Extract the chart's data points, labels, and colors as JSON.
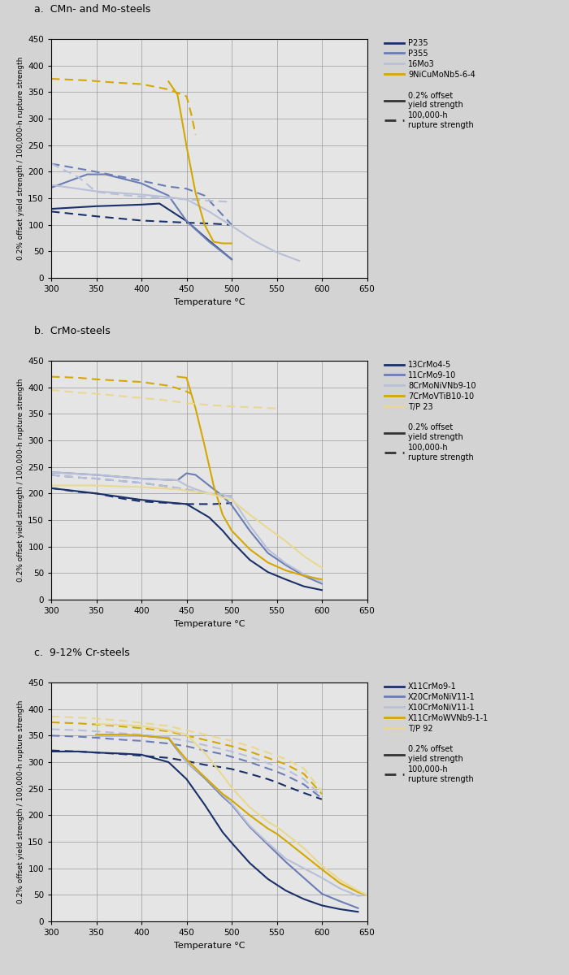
{
  "bg_color": "#d3d3d3",
  "plot_bg": "#e5e5e5",
  "title_a": "a.  CMn- and Mo-steels",
  "title_b": "b.  CrMo-steels",
  "title_c": "c.  9-12% Cr-steels",
  "ylabel": "0.2% offset yield strength / 100,000-h rupture strength",
  "xlabel": "Temperature °C",
  "xlim": [
    300,
    650
  ],
  "ylim": [
    0,
    450
  ],
  "xticks": [
    300,
    350,
    400,
    450,
    500,
    550,
    600,
    650
  ],
  "yticks": [
    0,
    50,
    100,
    150,
    200,
    250,
    300,
    350,
    400,
    450
  ],
  "panel_a": {
    "colors": {
      "P235": "#1a3068",
      "P355": "#6b7db5",
      "16Mo3": "#b8c0d8",
      "9NiCuMoNb5-6-4": "#d4a800"
    },
    "yield": {
      "P235": [
        [
          300,
          130
        ],
        [
          350,
          135
        ],
        [
          400,
          138
        ],
        [
          420,
          140
        ],
        [
          450,
          107
        ],
        [
          475,
          70
        ],
        [
          500,
          35
        ]
      ],
      "P355": [
        [
          300,
          170
        ],
        [
          340,
          195
        ],
        [
          360,
          195
        ],
        [
          400,
          178
        ],
        [
          430,
          155
        ],
        [
          450,
          107
        ],
        [
          475,
          68
        ],
        [
          500,
          35
        ]
      ],
      "16Mo3": [
        [
          300,
          175
        ],
        [
          350,
          163
        ],
        [
          400,
          157
        ],
        [
          430,
          152
        ],
        [
          450,
          148
        ],
        [
          475,
          125
        ],
        [
          500,
          98
        ],
        [
          525,
          70
        ],
        [
          550,
          48
        ],
        [
          575,
          32
        ]
      ],
      "9NiCuMoNb5-6-4": [
        [
          430,
          370
        ],
        [
          440,
          345
        ],
        [
          450,
          248
        ],
        [
          460,
          160
        ],
        [
          470,
          100
        ],
        [
          480,
          68
        ],
        [
          490,
          65
        ],
        [
          500,
          65
        ]
      ]
    },
    "rupture": {
      "P235": [
        [
          300,
          125
        ],
        [
          350,
          116
        ],
        [
          400,
          108
        ],
        [
          450,
          104
        ],
        [
          480,
          102
        ],
        [
          500,
          100
        ]
      ],
      "P355": [
        [
          300,
          215
        ],
        [
          340,
          203
        ],
        [
          370,
          193
        ],
        [
          400,
          183
        ],
        [
          430,
          172
        ],
        [
          450,
          168
        ],
        [
          470,
          155
        ],
        [
          500,
          100
        ]
      ],
      "16Mo3": [
        [
          300,
          215
        ],
        [
          330,
          190
        ],
        [
          350,
          162
        ],
        [
          380,
          156
        ],
        [
          400,
          153
        ],
        [
          430,
          150
        ],
        [
          450,
          148
        ],
        [
          470,
          146
        ],
        [
          500,
          143
        ]
      ],
      "9NiCuMoNb5-6-4": [
        [
          300,
          375
        ],
        [
          340,
          372
        ],
        [
          370,
          368
        ],
        [
          400,
          365
        ],
        [
          430,
          355
        ],
        [
          450,
          342
        ],
        [
          455,
          310
        ],
        [
          460,
          270
        ]
      ]
    }
  },
  "panel_b": {
    "colors": {
      "13CrMo4-5": "#1a3068",
      "11CrMo9-10": "#6b7db5",
      "8CrMoNiVNb9-10": "#b8c0d8",
      "7CrMoVTiB10-10": "#d4a800",
      "T/P 23": "#e8d890"
    },
    "yield": {
      "13CrMo4-5": [
        [
          300,
          210
        ],
        [
          350,
          200
        ],
        [
          400,
          188
        ],
        [
          430,
          183
        ],
        [
          450,
          180
        ],
        [
          475,
          155
        ],
        [
          490,
          130
        ],
        [
          500,
          110
        ],
        [
          520,
          75
        ],
        [
          540,
          52
        ],
        [
          560,
          38
        ],
        [
          580,
          25
        ],
        [
          600,
          18
        ]
      ],
      "11CrMo9-10": [
        [
          300,
          240
        ],
        [
          350,
          235
        ],
        [
          400,
          228
        ],
        [
          440,
          225
        ],
        [
          450,
          238
        ],
        [
          460,
          235
        ],
        [
          475,
          215
        ],
        [
          490,
          195
        ],
        [
          500,
          178
        ],
        [
          520,
          130
        ],
        [
          540,
          88
        ],
        [
          560,
          65
        ],
        [
          580,
          45
        ],
        [
          600,
          30
        ]
      ],
      "8CrMoNiVNb9-10": [
        [
          300,
          240
        ],
        [
          350,
          235
        ],
        [
          400,
          228
        ],
        [
          440,
          225
        ],
        [
          450,
          215
        ],
        [
          460,
          208
        ],
        [
          475,
          200
        ],
        [
          490,
          198
        ],
        [
          500,
          192
        ],
        [
          520,
          140
        ],
        [
          540,
          95
        ],
        [
          560,
          68
        ],
        [
          580,
          48
        ],
        [
          600,
          33
        ]
      ],
      "7CrMoVTiB10-10": [
        [
          440,
          420
        ],
        [
          450,
          418
        ],
        [
          460,
          360
        ],
        [
          470,
          290
        ],
        [
          480,
          215
        ],
        [
          490,
          160
        ],
        [
          500,
          130
        ],
        [
          520,
          95
        ],
        [
          540,
          70
        ],
        [
          560,
          55
        ],
        [
          580,
          45
        ],
        [
          600,
          38
        ]
      ],
      "T/P 23": [
        [
          300,
          215
        ],
        [
          350,
          215
        ],
        [
          400,
          212
        ],
        [
          440,
          208
        ],
        [
          450,
          205
        ],
        [
          475,
          200
        ],
        [
          500,
          188
        ],
        [
          520,
          160
        ],
        [
          540,
          135
        ],
        [
          560,
          110
        ],
        [
          580,
          82
        ],
        [
          600,
          60
        ]
      ]
    },
    "rupture": {
      "13CrMo4-5": [
        [
          300,
          210
        ],
        [
          330,
          203
        ],
        [
          350,
          200
        ],
        [
          380,
          190
        ],
        [
          400,
          185
        ],
        [
          430,
          182
        ],
        [
          450,
          180
        ],
        [
          480,
          180
        ],
        [
          500,
          182
        ]
      ],
      "11CrMo9-10": [
        [
          300,
          235
        ],
        [
          330,
          230
        ],
        [
          350,
          228
        ],
        [
          380,
          223
        ],
        [
          400,
          220
        ],
        [
          430,
          213
        ],
        [
          450,
          207
        ],
        [
          480,
          198
        ],
        [
          500,
          195
        ]
      ],
      "8CrMoNiVNb9-10": [
        [
          300,
          235
        ],
        [
          330,
          230
        ],
        [
          350,
          228
        ],
        [
          380,
          223
        ],
        [
          400,
          220
        ],
        [
          430,
          213
        ],
        [
          450,
          208
        ],
        [
          480,
          198
        ],
        [
          500,
          195
        ]
      ],
      "7CrMoVTiB10-10": [
        [
          300,
          420
        ],
        [
          330,
          418
        ],
        [
          350,
          415
        ],
        [
          380,
          412
        ],
        [
          400,
          410
        ],
        [
          430,
          403
        ],
        [
          440,
          398
        ],
        [
          450,
          392
        ],
        [
          455,
          388
        ]
      ],
      "T/P 23": [
        [
          300,
          395
        ],
        [
          330,
          390
        ],
        [
          350,
          388
        ],
        [
          380,
          383
        ],
        [
          400,
          380
        ],
        [
          430,
          375
        ],
        [
          450,
          370
        ],
        [
          480,
          366
        ],
        [
          500,
          364
        ],
        [
          530,
          362
        ],
        [
          550,
          360
        ]
      ]
    }
  },
  "panel_c": {
    "colors": {
      "X11CrMo9-1": "#1a3068",
      "X20CrMoNiV11-1": "#6b7db5",
      "X10CrMoNiV11-1": "#b8c0d8",
      "X11CrMoWVNb9-1-1": "#d4a800",
      "T/P 92": "#e8d890"
    },
    "yield": {
      "X11CrMo9-1": [
        [
          300,
          320
        ],
        [
          330,
          320
        ],
        [
          350,
          318
        ],
        [
          380,
          316
        ],
        [
          400,
          314
        ],
        [
          430,
          300
        ],
        [
          450,
          268
        ],
        [
          470,
          220
        ],
        [
          490,
          168
        ],
        [
          500,
          148
        ],
        [
          520,
          110
        ],
        [
          540,
          80
        ],
        [
          560,
          58
        ],
        [
          580,
          42
        ],
        [
          600,
          30
        ],
        [
          620,
          23
        ],
        [
          640,
          18
        ]
      ],
      "X20CrMoNiV11-1": [
        [
          350,
          350
        ],
        [
          380,
          350
        ],
        [
          400,
          350
        ],
        [
          430,
          345
        ],
        [
          450,
          300
        ],
        [
          470,
          270
        ],
        [
          490,
          235
        ],
        [
          500,
          220
        ],
        [
          520,
          178
        ],
        [
          540,
          145
        ],
        [
          560,
          112
        ],
        [
          580,
          82
        ],
        [
          600,
          52
        ],
        [
          620,
          38
        ],
        [
          640,
          25
        ]
      ],
      "X10CrMoNiV11-1": [
        [
          350,
          350
        ],
        [
          380,
          350
        ],
        [
          400,
          350
        ],
        [
          430,
          348
        ],
        [
          450,
          300
        ],
        [
          470,
          272
        ],
        [
          490,
          238
        ],
        [
          500,
          222
        ],
        [
          520,
          180
        ],
        [
          540,
          148
        ],
        [
          560,
          118
        ],
        [
          580,
          100
        ],
        [
          600,
          82
        ],
        [
          620,
          62
        ],
        [
          640,
          48
        ],
        [
          650,
          50
        ]
      ],
      "X11CrMoWVNb9-1-1": [
        [
          350,
          352
        ],
        [
          380,
          352
        ],
        [
          400,
          350
        ],
        [
          430,
          345
        ],
        [
          450,
          305
        ],
        [
          470,
          272
        ],
        [
          490,
          240
        ],
        [
          500,
          228
        ],
        [
          520,
          200
        ],
        [
          540,
          175
        ],
        [
          550,
          165
        ],
        [
          560,
          152
        ],
        [
          580,
          125
        ],
        [
          600,
          98
        ],
        [
          620,
          72
        ],
        [
          640,
          55
        ],
        [
          650,
          50
        ]
      ],
      "T/P 92": [
        [
          350,
          372
        ],
        [
          380,
          370
        ],
        [
          400,
          368
        ],
        [
          430,
          360
        ],
        [
          450,
          352
        ],
        [
          470,
          318
        ],
        [
          490,
          275
        ],
        [
          500,
          252
        ],
        [
          520,
          215
        ],
        [
          540,
          188
        ],
        [
          550,
          178
        ],
        [
          560,
          165
        ],
        [
          580,
          138
        ],
        [
          600,
          105
        ],
        [
          620,
          78
        ],
        [
          640,
          58
        ],
        [
          650,
          50
        ]
      ]
    },
    "rupture": {
      "X11CrMo9-1": [
        [
          300,
          322
        ],
        [
          330,
          320
        ],
        [
          350,
          318
        ],
        [
          380,
          315
        ],
        [
          400,
          312
        ],
        [
          430,
          308
        ],
        [
          450,
          302
        ],
        [
          470,
          295
        ],
        [
          490,
          290
        ],
        [
          500,
          287
        ],
        [
          520,
          278
        ],
        [
          540,
          268
        ],
        [
          550,
          262
        ],
        [
          560,
          255
        ],
        [
          580,
          242
        ],
        [
          600,
          230
        ]
      ],
      "X20CrMoNiV11-1": [
        [
          300,
          350
        ],
        [
          330,
          348
        ],
        [
          350,
          346
        ],
        [
          380,
          342
        ],
        [
          400,
          340
        ],
        [
          430,
          335
        ],
        [
          450,
          330
        ],
        [
          470,
          322
        ],
        [
          490,
          315
        ],
        [
          500,
          310
        ],
        [
          520,
          300
        ],
        [
          540,
          288
        ],
        [
          550,
          282
        ],
        [
          560,
          275
        ],
        [
          580,
          258
        ],
        [
          600,
          232
        ]
      ],
      "X10CrMoNiV11-1": [
        [
          300,
          362
        ],
        [
          330,
          360
        ],
        [
          350,
          358
        ],
        [
          380,
          354
        ],
        [
          400,
          352
        ],
        [
          430,
          346
        ],
        [
          450,
          340
        ],
        [
          470,
          332
        ],
        [
          490,
          324
        ],
        [
          500,
          320
        ],
        [
          520,
          310
        ],
        [
          540,
          298
        ],
        [
          550,
          292
        ],
        [
          560,
          286
        ],
        [
          580,
          268
        ],
        [
          600,
          235
        ]
      ],
      "X11CrMoWVNb9-1-1": [
        [
          300,
          375
        ],
        [
          330,
          373
        ],
        [
          350,
          371
        ],
        [
          380,
          367
        ],
        [
          400,
          364
        ],
        [
          430,
          358
        ],
        [
          450,
          350
        ],
        [
          470,
          342
        ],
        [
          490,
          334
        ],
        [
          500,
          330
        ],
        [
          520,
          320
        ],
        [
          540,
          308
        ],
        [
          550,
          302
        ],
        [
          560,
          296
        ],
        [
          580,
          278
        ],
        [
          600,
          240
        ]
      ],
      "T/P 92": [
        [
          300,
          386
        ],
        [
          330,
          384
        ],
        [
          350,
          382
        ],
        [
          380,
          378
        ],
        [
          400,
          374
        ],
        [
          430,
          368
        ],
        [
          450,
          360
        ],
        [
          470,
          352
        ],
        [
          490,
          344
        ],
        [
          500,
          340
        ],
        [
          520,
          330
        ],
        [
          540,
          318
        ],
        [
          550,
          312
        ],
        [
          560,
          306
        ],
        [
          580,
          288
        ],
        [
          600,
          245
        ]
      ]
    }
  }
}
